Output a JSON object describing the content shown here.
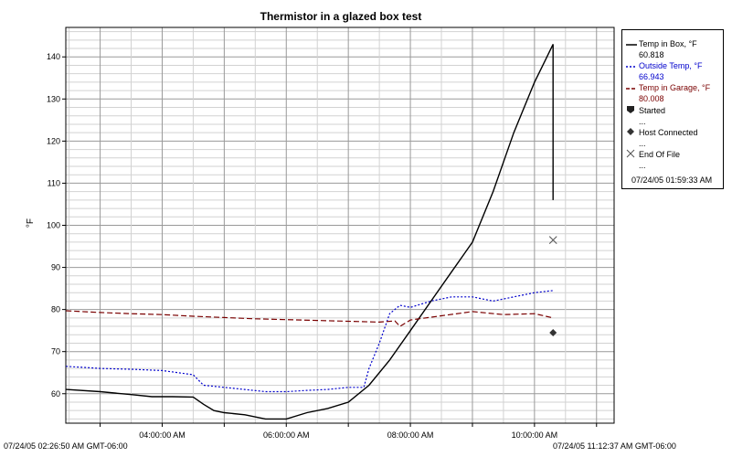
{
  "chart_data": {
    "type": "line",
    "title": "Thermistor in a glazed box test",
    "ylabel": "°F",
    "xlabel": "",
    "ylim": [
      53,
      147
    ],
    "y_ticks": [
      60,
      70,
      80,
      90,
      100,
      110,
      120,
      130,
      140
    ],
    "x_ticks": [
      "04:00:00 AM",
      "06:00:00 AM",
      "08:00:00 AM",
      "10:00:00 AM"
    ],
    "grid": true,
    "legend_position": "right",
    "series": [
      {
        "name": "Temp in Box, °F",
        "color": "#000000",
        "style": "solid",
        "x": [
          "2:27",
          "3:00",
          "3:30",
          "3:50",
          "4:10",
          "4:30",
          "4:40",
          "4:50",
          "5:00",
          "5:20",
          "5:40",
          "6:00",
          "6:20",
          "6:40",
          "7:00",
          "7:20",
          "7:40",
          "8:00",
          "8:20",
          "8:40",
          "9:00",
          "9:20",
          "9:40",
          "10:00",
          "10:10",
          "10:18",
          "10:18"
        ],
        "values": [
          61,
          60.5,
          59.8,
          59.3,
          59.3,
          59.2,
          57.5,
          56,
          55.5,
          55,
          54,
          54,
          55.5,
          56.5,
          58,
          62,
          68,
          75,
          82,
          89,
          96,
          108,
          122,
          134,
          139,
          143,
          106
        ]
      },
      {
        "name": "Outside Temp, °F",
        "color": "#0000cc",
        "style": "dotted",
        "x": [
          "2:27",
          "3:00",
          "3:30",
          "4:00",
          "4:30",
          "4:40",
          "5:00",
          "5:40",
          "6:00",
          "6:20",
          "6:40",
          "7:00",
          "7:15",
          "7:20",
          "7:30",
          "7:40",
          "7:50",
          "8:00",
          "8:20",
          "8:40",
          "9:00",
          "9:20",
          "9:40",
          "10:00",
          "10:18"
        ],
        "values": [
          66.5,
          66,
          65.8,
          65.5,
          64.5,
          62,
          61.5,
          60.5,
          60.5,
          60.8,
          61,
          61.5,
          61.5,
          66,
          72,
          79,
          81,
          80.5,
          82,
          83,
          83,
          82,
          83,
          84,
          84.5
        ]
      },
      {
        "name": "Temp in Garage, °F",
        "color": "#7a0000",
        "style": "dashed",
        "x": [
          "2:27",
          "3:00",
          "3:30",
          "4:00",
          "4:30",
          "5:00",
          "5:30",
          "6:00",
          "6:30",
          "7:00",
          "7:30",
          "7:45",
          "7:50",
          "8:00",
          "8:30",
          "9:00",
          "9:30",
          "10:00",
          "10:18"
        ],
        "values": [
          79.7,
          79.3,
          79,
          78.8,
          78.4,
          78.1,
          77.8,
          77.6,
          77.4,
          77.2,
          77,
          77.3,
          76,
          77.5,
          78.5,
          79.5,
          78.8,
          79,
          78
        ]
      }
    ],
    "events": [
      {
        "name": "Host Connected",
        "marker": "diamond",
        "x": "10:18",
        "y": 74.5
      },
      {
        "name": "End Of File",
        "marker": "x",
        "x": "10:18",
        "y": 96.5
      }
    ]
  },
  "legend": {
    "items": [
      {
        "label": "Temp in Box, °F",
        "value": "60.818",
        "color": "#000000"
      },
      {
        "label": "Outside Temp, °F",
        "value": "66.943",
        "color": "#0000cc"
      },
      {
        "label": "Temp in Garage, °F",
        "value": "80.008",
        "color": "#7a0000"
      }
    ],
    "events": [
      {
        "label": "Started",
        "value": "..."
      },
      {
        "label": "Host Connected",
        "value": "..."
      },
      {
        "label": "End Of File",
        "value": "..."
      }
    ],
    "timestamp": "07/24/05 01:59:33 AM"
  },
  "footer": {
    "start": "07/24/05 02:26:50 AM GMT-06:00",
    "end": "07/24/05 11:12:37 AM GMT-06:00"
  }
}
